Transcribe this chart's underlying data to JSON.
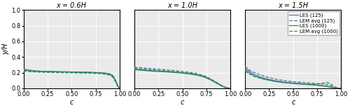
{
  "titles": [
    "x = 0.6H",
    "x = 1.0H",
    "x = 1.5H"
  ],
  "xlabel": "c",
  "ylabel": "y/H",
  "xlim": [
    0.0,
    1.0
  ],
  "ylim": [
    0.0,
    1.0
  ],
  "legend_entries": [
    "LES (125)",
    "LEM avg (125)",
    "LES (1000)",
    "LEM avg (1000)"
  ],
  "color_125": "#4c72a4",
  "color_1000": "#2e8b57",
  "grid_color": "#ffffff",
  "panel_bg": "#eaeaea"
}
